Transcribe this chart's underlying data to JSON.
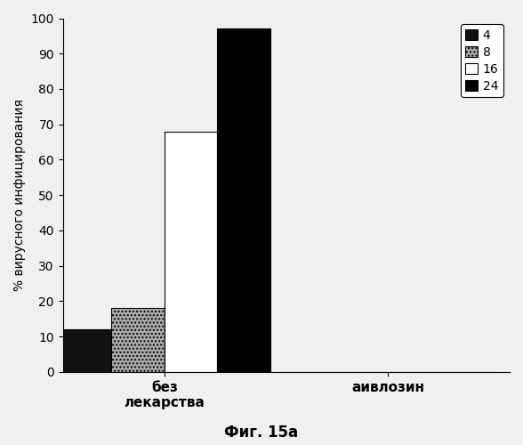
{
  "categories": [
    "без\nлекарства",
    "аивлозин"
  ],
  "series_labels": [
    "4",
    "8",
    "16",
    "24"
  ],
  "values": [
    [
      12,
      18,
      68,
      97
    ],
    [
      0,
      0,
      0,
      0
    ]
  ],
  "bar_colors": [
    "#111111",
    "#aaaaaa",
    "#ffffff",
    "#000000"
  ],
  "bar_hatches": [
    null,
    "....",
    null,
    null
  ],
  "bar_edgecolors": [
    "#000000",
    "#000000",
    "#000000",
    "#000000"
  ],
  "ylabel": "% вирусного инфицирования",
  "caption": "Фиг. 15а",
  "ylim": [
    0,
    100
  ],
  "yticks": [
    0,
    10,
    20,
    30,
    40,
    50,
    60,
    70,
    80,
    90,
    100
  ],
  "background_color": "#f0f0f0",
  "bar_width": 0.13,
  "ylabel_fontsize": 10,
  "tick_fontsize": 10,
  "legend_fontsize": 10,
  "caption_fontsize": 12,
  "xtick_fontsize": 11
}
